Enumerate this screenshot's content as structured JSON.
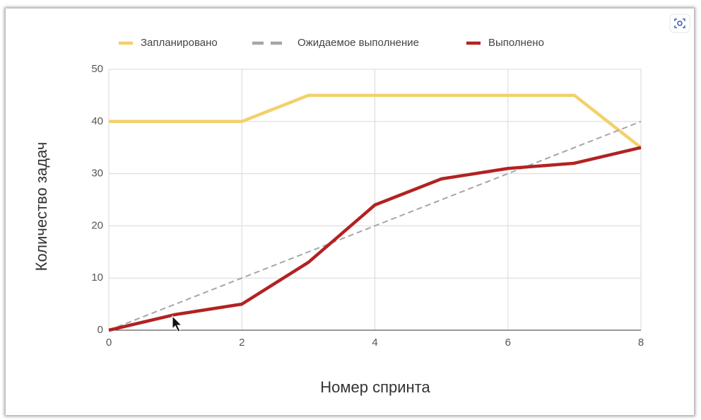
{
  "chart_data": {
    "type": "line",
    "x_label": "Номер спринта",
    "y_label": "Количество задач",
    "x": [
      0,
      1,
      2,
      3,
      4,
      5,
      6,
      7,
      8
    ],
    "series": [
      {
        "name": "Запланировано",
        "color": "#f2d16b",
        "dashed": false,
        "values": [
          40,
          40,
          40,
          45,
          45,
          45,
          45,
          45,
          35
        ]
      },
      {
        "name": "Ожидаемое выполнение",
        "color": "#a6a6a6",
        "dashed": true,
        "values": [
          0,
          5,
          10,
          15,
          20,
          25,
          30,
          35,
          40
        ]
      },
      {
        "name": "Выполнено",
        "color": "#b22222",
        "dashed": false,
        "values": [
          0,
          3,
          5,
          13,
          24,
          29,
          31,
          32,
          35
        ]
      }
    ],
    "xlim": [
      0,
      8
    ],
    "xticks": [
      0,
      2,
      4,
      6,
      8
    ],
    "ylim": [
      0,
      50
    ],
    "yticks": [
      0,
      10,
      20,
      30,
      40,
      50
    ],
    "grid": true,
    "legend": "top"
  }
}
